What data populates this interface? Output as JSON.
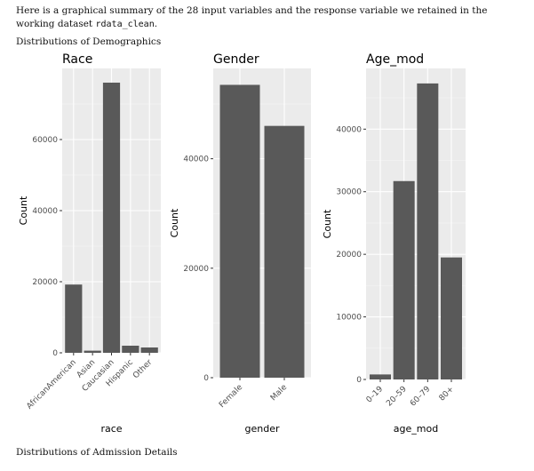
{
  "intro": {
    "text_before": "Here is a graphical summary of the 28 input variables and the response variable we retained in the working dataset ",
    "code": "rdata_clean",
    "text_after": "."
  },
  "sections": {
    "demographics": "Distributions of Demographics",
    "admission": "Distributions of Admission Details"
  },
  "colors": {
    "panel": "#ebebeb",
    "grid_major": "#ffffff",
    "bar": "#595959",
    "text": "#000000",
    "tick": "#4d4d4d"
  },
  "chart_data": [
    {
      "type": "bar",
      "title": "Race",
      "xlabel": "race",
      "ylabel": "Count",
      "categories": [
        "AfricanAmerican",
        "Asian",
        "Caucasian",
        "Hispanic",
        "Other"
      ],
      "values": [
        19200,
        600,
        76000,
        2000,
        1500
      ],
      "ylim": [
        0,
        80000
      ],
      "yticks": [
        0,
        20000,
        40000,
        60000
      ],
      "ytick_labels": [
        "0",
        "20000",
        "40000",
        "60000"
      ],
      "grid": true
    },
    {
      "type": "bar",
      "title": "Gender",
      "xlabel": "gender",
      "ylabel": "Count",
      "categories": [
        "Female",
        "Male"
      ],
      "values": [
        53500,
        46000
      ],
      "ylim": [
        0,
        56500
      ],
      "yticks": [
        0,
        20000,
        40000
      ],
      "ytick_labels": [
        "0",
        "20000",
        "40000"
      ],
      "grid": true
    },
    {
      "type": "bar",
      "title": "Age_mod",
      "xlabel": "age_mod",
      "ylabel": "Count",
      "categories": [
        "0–19",
        "20–59",
        "60–79",
        "80+"
      ],
      "values": [
        800,
        31700,
        47300,
        19500
      ],
      "ylim": [
        0,
        49700
      ],
      "yticks": [
        0,
        10000,
        20000,
        30000,
        40000
      ],
      "ytick_labels": [
        "0",
        "10000",
        "20000",
        "30000",
        "40000"
      ],
      "grid": true
    }
  ]
}
